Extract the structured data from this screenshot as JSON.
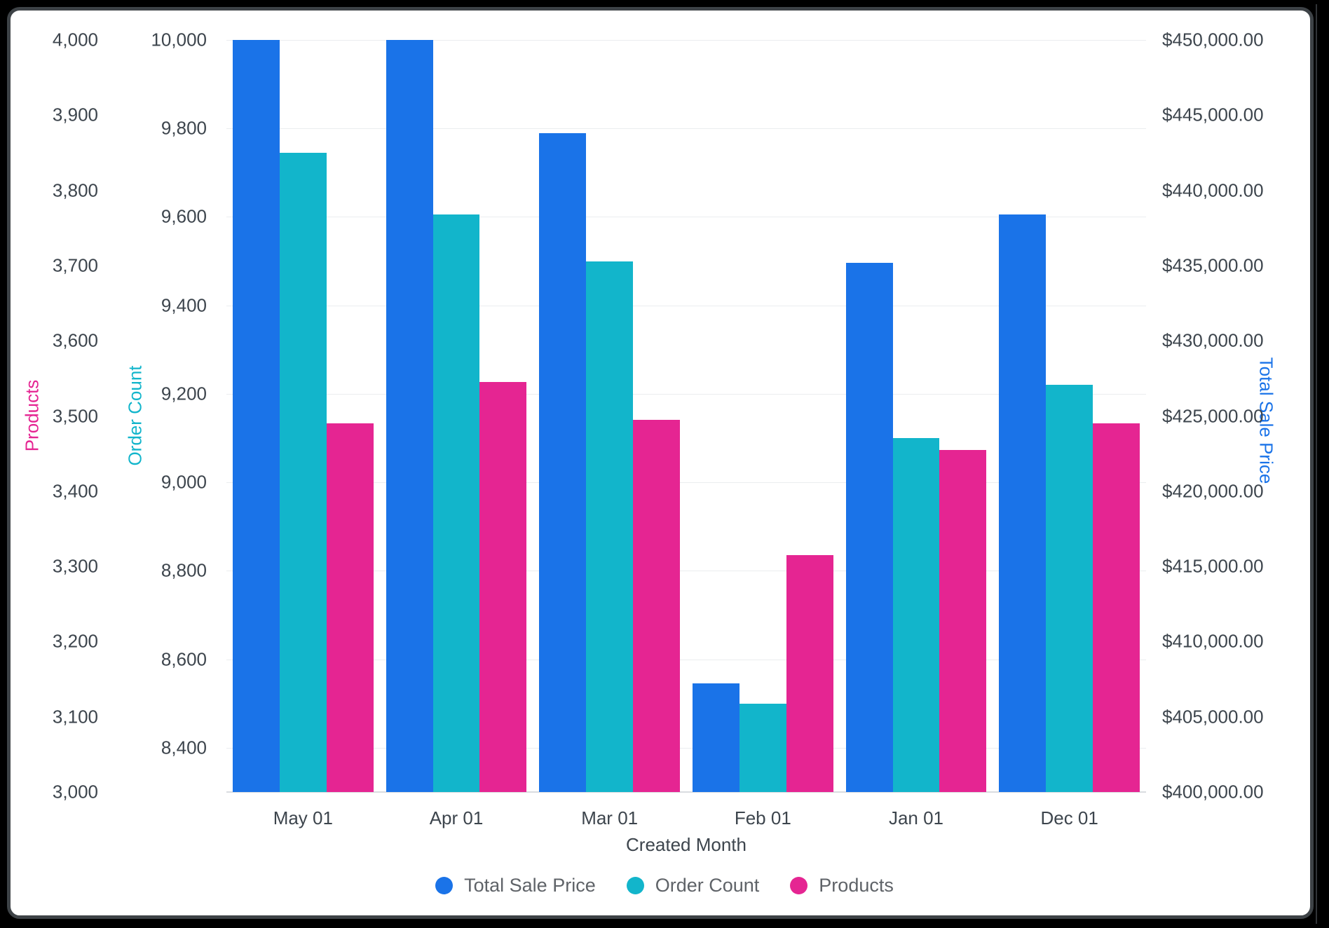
{
  "frame": {
    "background_color": "#000000",
    "panel_color": "#ffffff",
    "panel_border_color": "#3e4347"
  },
  "chart_data": {
    "type": "bar",
    "title": "",
    "categories": [
      "May 01",
      "Apr 01",
      "Mar 01",
      "Feb 01",
      "Jan 01",
      "Dec 01"
    ],
    "x_axis": {
      "label": "Created Month"
    },
    "axes": [
      {
        "id": "products",
        "label": "Products",
        "color": "#E52592",
        "min": 3000,
        "max": 4000,
        "ticks": [
          "4,000",
          "3,900",
          "3,800",
          "3,700",
          "3,600",
          "3,500",
          "3,400",
          "3,300",
          "3,200",
          "3,100",
          "3,000"
        ]
      },
      {
        "id": "order_count",
        "label": "Order Count",
        "color": "#12B5CB",
        "min": 8300,
        "max": 10000,
        "ticks": [
          "10,000",
          "9,800",
          "9,600",
          "9,400",
          "9,200",
          "9,000",
          "8,800",
          "8,600",
          "8,400"
        ],
        "tick_values": [
          10000,
          9800,
          9600,
          9400,
          9200,
          9000,
          8800,
          8600,
          8400
        ]
      },
      {
        "id": "total_sale_price",
        "label": "Total Sale Price",
        "color": "#1A73E8",
        "min": 400000,
        "max": 450000,
        "ticks": [
          "$450,000.00",
          "$445,000.00",
          "$440,000.00",
          "$435,000.00",
          "$430,000.00",
          "$425,000.00",
          "$420,000.00",
          "$415,000.00",
          "$410,000.00",
          "$405,000.00",
          "$400,000.00"
        ]
      }
    ],
    "series": [
      {
        "name": "Total Sale Price",
        "axis": "total_sale_price",
        "color": "#1A73E8",
        "values": [
          450000,
          450000,
          443800,
          407200,
          435200,
          438400
        ]
      },
      {
        "name": "Order Count",
        "axis": "order_count",
        "color": "#12B5CB",
        "values": [
          9745,
          9605,
          9500,
          8500,
          9100,
          9220
        ]
      },
      {
        "name": "Products",
        "axis": "products",
        "color": "#E52592",
        "values": [
          3490,
          3545,
          3495,
          3315,
          3455,
          3490
        ]
      }
    ],
    "legend": [
      {
        "label": "Total Sale Price",
        "color": "#1A73E8"
      },
      {
        "label": "Order Count",
        "color": "#12B5CB"
      },
      {
        "label": "Products",
        "color": "#E52592"
      }
    ],
    "grid": {
      "line_color": "#ebedef",
      "baseline_color": "#dadce0",
      "gridlines_follow_axis": "order_count",
      "legend_position": "bottom"
    }
  }
}
